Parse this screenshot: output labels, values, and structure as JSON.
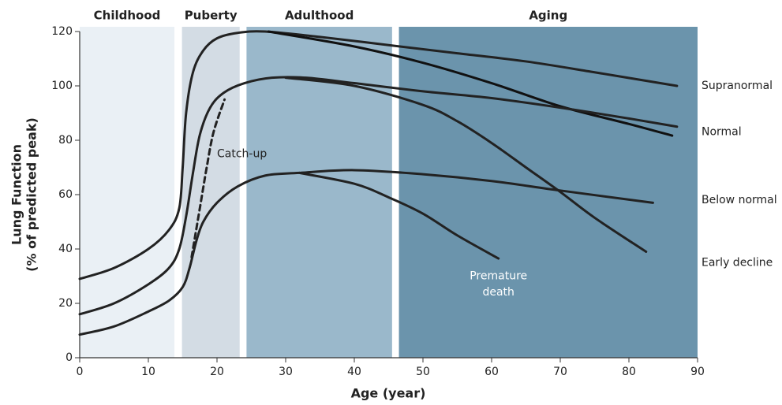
{
  "chart_data": {
    "type": "line",
    "xlabel": "Age (year)",
    "ylabel": [
      "Lung Function",
      "(% of predicted peak)"
    ],
    "xlim": [
      0,
      90
    ],
    "xticks": [
      0,
      10,
      20,
      30,
      40,
      50,
      60,
      70,
      80,
      90
    ],
    "ylim": [
      0,
      120
    ],
    "yticks": [
      0,
      20,
      40,
      60,
      80,
      100,
      120
    ],
    "bands": [
      {
        "label": "Childhood",
        "start": 0,
        "end": 13.8,
        "color": "#eaf0f5"
      },
      {
        "label": "Puberty",
        "start": 14.9,
        "end": 23.3,
        "color": "#d3dce4"
      },
      {
        "label": "Adulthood",
        "start": 24.3,
        "end": 45.5,
        "color": "#9ab8cb"
      },
      {
        "label": "Aging",
        "start": 46.5,
        "end": 90,
        "color": "#6b94ac"
      }
    ],
    "series": [
      {
        "color": "#222222",
        "dash": false,
        "x": [
          0,
          5,
          10,
          13,
          14.5,
          15,
          15.5,
          16.5,
          18,
          20,
          23,
          27,
          35,
          45,
          55,
          65,
          75,
          87
        ],
        "values": [
          29,
          33,
          40,
          47,
          55,
          70,
          90,
          105,
          113,
          117.5,
          119.5,
          120,
          118,
          115,
          112,
          109,
          105,
          100
        ]
      },
      {
        "color": "#111111",
        "dash": false,
        "x": [
          27.5,
          40,
          50,
          60,
          70,
          80,
          86.3
        ],
        "values": [
          120,
          114.5,
          108.5,
          101,
          92.5,
          86,
          81.7
        ]
      },
      {
        "color": "#222222",
        "dash": false,
        "x": [
          0,
          5,
          10,
          13,
          14.5,
          15.5,
          16.5,
          17.5,
          19,
          21,
          24,
          28,
          33,
          40,
          50,
          60,
          70,
          80,
          87
        ],
        "values": [
          16,
          20,
          27,
          33,
          40,
          52,
          68,
          82,
          92,
          97.5,
          101,
          103,
          103,
          101,
          98,
          95.5,
          92,
          88,
          85
        ]
      },
      {
        "color": "#222222",
        "dash": false,
        "x": [
          30,
          40,
          50,
          55,
          60,
          65,
          70,
          75,
          82.5
        ],
        "values": [
          103,
          100,
          93,
          87,
          79,
          70,
          61,
          51.5,
          39
        ]
      },
      {
        "color": "#222222",
        "dash": false,
        "x": [
          0,
          5,
          10,
          13,
          15,
          16,
          17,
          18,
          20,
          23,
          27,
          32,
          40,
          50,
          60,
          70,
          83.5
        ],
        "values": [
          8.5,
          11.5,
          17,
          21,
          26,
          33,
          43,
          50,
          57,
          63,
          67,
          68,
          69,
          67.5,
          65,
          61.5,
          57
        ]
      },
      {
        "color": "#222222",
        "dash": false,
        "x": [
          32,
          40,
          45,
          50,
          55,
          61
        ],
        "values": [
          68,
          64,
          59,
          53,
          45,
          36.5
        ]
      },
      {
        "color": "#222222",
        "dash": true,
        "x": [
          16.3,
          17.5,
          18.5,
          19.5,
          21.1
        ],
        "values": [
          37,
          55,
          70,
          83,
          95
        ]
      }
    ],
    "annotations": [
      {
        "text": "Catch-up",
        "x": 20,
        "y": 75
      },
      {
        "text": "Premature",
        "x": 61,
        "y": 30
      },
      {
        "text": "death",
        "x": 61,
        "y": 24
      }
    ],
    "right_labels": [
      {
        "text": "Supranormal",
        "y": 100
      },
      {
        "text": "Normal",
        "y": 83
      },
      {
        "text": "Below normal",
        "y": 58
      },
      {
        "text": "Early decline",
        "y": 35
      }
    ]
  }
}
